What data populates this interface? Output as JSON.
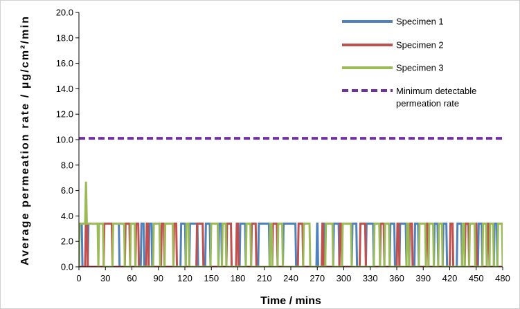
{
  "chart_data": {
    "type": "line",
    "title": "",
    "xlabel": "Time / mins",
    "ylabel": "Average permeation rate / µg/cm²/min",
    "xlim": [
      0,
      480
    ],
    "ylim": [
      0,
      20
    ],
    "x_ticks": [
      "0",
      "30",
      "60",
      "90",
      "120",
      "150",
      "180",
      "210",
      "240",
      "270",
      "300",
      "330",
      "360",
      "390",
      "420",
      "450",
      "480"
    ],
    "y_ticks": [
      "0.0",
      "2.0",
      "4.0",
      "6.0",
      "8.0",
      "10.0",
      "12.0",
      "14.0",
      "16.0",
      "18.0",
      "20.0"
    ],
    "grid": false,
    "legend_position": "top-right",
    "threshold": {
      "name": "Minimum detectable permeation rate",
      "name_lines": [
        "Minimum detectable",
        "permeation rate"
      ],
      "value": 10.1,
      "color": "#7030a0",
      "dashed": true
    },
    "series": [
      {
        "name": "Specimen 1",
        "color": "#4f81bd",
        "high": 3.4,
        "pulses": [
          [
            0,
            4
          ],
          [
            10,
            46
          ],
          [
            70,
            74
          ],
          [
            79,
            83
          ],
          [
            115,
            121
          ],
          [
            125,
            135
          ],
          [
            143,
            149
          ],
          [
            158,
            162
          ],
          [
            182,
            189
          ],
          [
            203,
            216
          ],
          [
            231,
            246
          ],
          [
            269,
            271
          ],
          [
            277,
            279
          ],
          [
            288,
            295
          ],
          [
            309,
            315
          ],
          [
            325,
            334
          ],
          [
            352,
            358
          ],
          [
            363,
            371
          ],
          [
            380,
            385
          ],
          [
            402,
            407
          ],
          [
            412,
            417
          ],
          [
            428,
            434
          ],
          [
            452,
            457
          ],
          [
            470,
            474
          ]
        ]
      },
      {
        "name": "Specimen 2",
        "color": "#c0504d",
        "high": 3.4,
        "pulses": [
          [
            7,
            10
          ],
          [
            28,
            38
          ],
          [
            52,
            58
          ],
          [
            64,
            68
          ],
          [
            76,
            79
          ],
          [
            93,
            97
          ],
          [
            107,
            111
          ],
          [
            133,
            141
          ],
          [
            167,
            173
          ],
          [
            178,
            181
          ],
          [
            195,
            201
          ],
          [
            219,
            225
          ],
          [
            248,
            254
          ],
          [
            275,
            277
          ],
          [
            295,
            298
          ],
          [
            318,
            325
          ],
          [
            341,
            346
          ],
          [
            360,
            363
          ],
          [
            374,
            378
          ],
          [
            393,
            396
          ],
          [
            420,
            424
          ],
          [
            437,
            442
          ],
          [
            449,
            451
          ],
          [
            462,
            465
          ]
        ]
      },
      {
        "name": "Specimen 3",
        "color": "#9bbb59",
        "high": 3.4,
        "spike": {
          "x": 8,
          "y": 6.7
        },
        "pulses": [
          [
            0,
            22
          ],
          [
            22,
            28
          ],
          [
            38,
            52
          ],
          [
            58,
            64
          ],
          [
            84,
            92
          ],
          [
            97,
            107
          ],
          [
            121,
            125
          ],
          [
            149,
            158
          ],
          [
            162,
            167
          ],
          [
            189,
            195
          ],
          [
            216,
            219
          ],
          [
            225,
            231
          ],
          [
            254,
            262
          ],
          [
            279,
            288
          ],
          [
            298,
            309
          ],
          [
            334,
            341
          ],
          [
            346,
            352
          ],
          [
            371,
            374
          ],
          [
            385,
            393
          ],
          [
            396,
            402
          ],
          [
            407,
            412
          ],
          [
            434,
            437
          ],
          [
            442,
            449
          ],
          [
            457,
            462
          ],
          [
            465,
            470
          ],
          [
            474,
            480
          ]
        ]
      }
    ]
  }
}
